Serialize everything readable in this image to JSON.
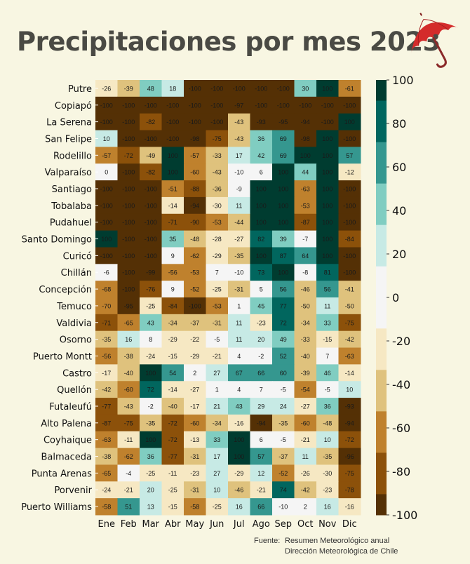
{
  "title": "Precipitaciones por mes 2023",
  "source": {
    "label": "Fuente:",
    "lines": [
      "Resumen Meteorológico anual",
      "Dirección Meteorológica de Chile"
    ]
  },
  "colors": {
    "background": "#f8f6e2",
    "umbrella": "#d42b2b",
    "scale": [
      "#543005",
      "#8c510a",
      "#bf812d",
      "#dfc27d",
      "#f6e8c3",
      "#f5f5f5",
      "#c7eae5",
      "#80cdc1",
      "#35978f",
      "#01665e",
      "#003c30"
    ]
  },
  "chart_data": {
    "type": "heatmap",
    "x": [
      "Ene",
      "Feb",
      "Mar",
      "Abr",
      "May",
      "Jun",
      "Jul",
      "Ago",
      "Sep",
      "Oct",
      "Nov",
      "Dic"
    ],
    "y": [
      "Putre",
      "Copiapó",
      "La Serena",
      "San Felipe",
      "Rodelillo",
      "Valparaíso",
      "Santiago",
      "Tobalaba",
      "Pudahuel",
      "Santo Domingo",
      "Curicó",
      "Chillán",
      "Concepción",
      "Temuco",
      "Valdivia",
      "Osorno",
      "Puerto Montt",
      "Castro",
      "Quellón",
      "Futaleufú",
      "Alto Palena",
      "Coyhaique",
      "Balmaceda",
      "Punta Arenas",
      "Porvenir",
      "Puerto Williams"
    ],
    "values": [
      [
        -26,
        -39,
        48,
        18,
        -100,
        -100,
        -100,
        -100,
        -100,
        30,
        100,
        -61
      ],
      [
        -100,
        -100,
        -100,
        -100,
        -100,
        -100,
        -97,
        -100,
        -100,
        -100,
        -100,
        -100
      ],
      [
        -100,
        -100,
        -82,
        -100,
        -100,
        -100,
        -43,
        -93,
        -95,
        -94,
        -100,
        100
      ],
      [
        10,
        -100,
        -100,
        -100,
        -98,
        -75,
        -43,
        36,
        69,
        -98,
        100,
        -100
      ],
      [
        -57,
        -72,
        -49,
        100,
        -57,
        -33,
        17,
        42,
        69,
        100,
        100,
        57
      ],
      [
        0,
        -100,
        -82,
        100,
        -60,
        -43,
        -10,
        6,
        100,
        44,
        100,
        -12
      ],
      [
        -100,
        -100,
        -100,
        -51,
        -88,
        -36,
        -9,
        100,
        100,
        -63,
        100,
        -100
      ],
      [
        -100,
        -100,
        -100,
        -14,
        -94,
        -30,
        11,
        100,
        100,
        -53,
        100,
        -100
      ],
      [
        -100,
        -100,
        -100,
        -71,
        -90,
        -53,
        -44,
        100,
        100,
        -87,
        100,
        -100
      ],
      [
        100,
        -100,
        -100,
        35,
        -48,
        -28,
        -27,
        82,
        39,
        -7,
        100,
        -84
      ],
      [
        -100,
        -100,
        -100,
        9,
        -62,
        -29,
        -35,
        100,
        87,
        64,
        100,
        -100
      ],
      [
        -6,
        -100,
        -99,
        -56,
        -53,
        7,
        -10,
        73,
        100,
        -8,
        81,
        -100
      ],
      [
        -68,
        -100,
        -76,
        9,
        -52,
        -25,
        -31,
        5,
        56,
        -46,
        56,
        -41
      ],
      [
        -70,
        -95,
        -25,
        -84,
        -100,
        -53,
        1,
        45,
        77,
        -50,
        11,
        -50
      ],
      [
        -71,
        -65,
        43,
        -34,
        -37,
        -31,
        11,
        -23,
        72,
        -34,
        33,
        -75
      ],
      [
        -35,
        16,
        8,
        -29,
        -22,
        -5,
        11,
        20,
        49,
        -33,
        -15,
        -42
      ],
      [
        -56,
        -38,
        -24,
        -15,
        -29,
        -21,
        4,
        -2,
        52,
        -40,
        7,
        -63
      ],
      [
        -17,
        -40,
        100,
        54,
        2,
        27,
        67,
        66,
        60,
        -39,
        46,
        -14
      ],
      [
        -42,
        -60,
        72,
        -14,
        -27,
        1,
        4,
        7,
        -5,
        -54,
        -5,
        10
      ],
      [
        -77,
        -43,
        -2,
        -40,
        -17,
        21,
        43,
        29,
        24,
        -27,
        36,
        -93
      ],
      [
        -87,
        -75,
        -35,
        -72,
        -60,
        -34,
        -16,
        -94,
        -35,
        -60,
        -48,
        -94
      ],
      [
        -63,
        -11,
        100,
        -72,
        -13,
        33,
        100,
        6,
        -5,
        -21,
        10,
        -72
      ],
      [
        -38,
        -62,
        36,
        -77,
        -31,
        17,
        100,
        57,
        -37,
        11,
        -35,
        -96
      ],
      [
        -65,
        -4,
        -25,
        -11,
        -23,
        27,
        -29,
        12,
        -52,
        -26,
        -30,
        -75
      ],
      [
        -24,
        -21,
        20,
        -25,
        -31,
        10,
        -46,
        -21,
        74,
        -42,
        -23,
        -78
      ],
      [
        -58,
        51,
        13,
        -15,
        -58,
        -25,
        16,
        66,
        -10,
        2,
        16,
        -16
      ]
    ],
    "zlim": [
      -100,
      100
    ],
    "colorbar_ticks": [
      100,
      80,
      60,
      40,
      20,
      0,
      -20,
      -40,
      -60,
      -80,
      -100
    ],
    "colormap": "BrBG (diverging brown–white–teal)"
  }
}
